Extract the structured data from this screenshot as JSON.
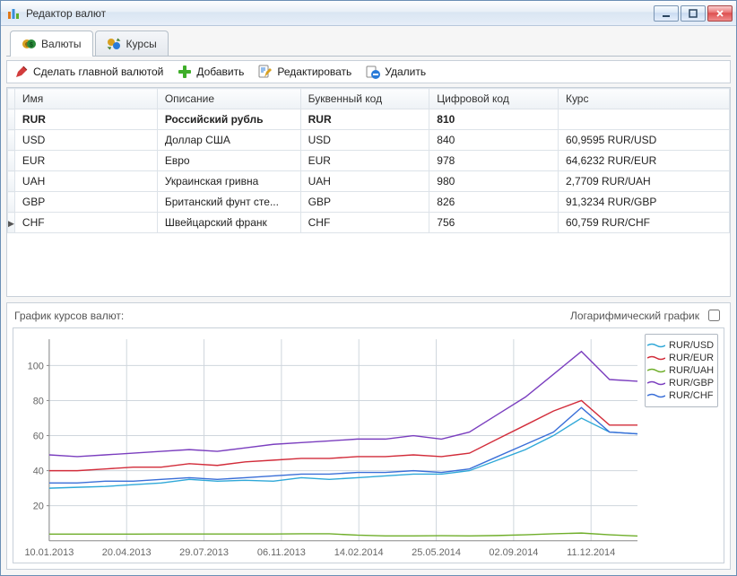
{
  "window": {
    "title": "Редактор валют"
  },
  "tabs": [
    {
      "label": "Валюты",
      "active": true
    },
    {
      "label": "Курсы",
      "active": false
    }
  ],
  "toolbar": {
    "make_main": "Сделать главной валютой",
    "add": "Добавить",
    "edit": "Редактировать",
    "delete": "Удалить"
  },
  "table": {
    "columns": [
      "Имя",
      "Описание",
      "Буквенный код",
      "Цифровой код",
      "Курс"
    ],
    "col_widths_pct": [
      20,
      20,
      18,
      18,
      24
    ],
    "rows": [
      {
        "name": "RUR",
        "desc": "Российский рубль",
        "alpha": "RUR",
        "num": "810",
        "rate": "",
        "bold": true,
        "current": false
      },
      {
        "name": "USD",
        "desc": "Доллар США",
        "alpha": "USD",
        "num": "840",
        "rate": "60,9595 RUR/USD",
        "bold": false,
        "current": false
      },
      {
        "name": "EUR",
        "desc": "Евро",
        "alpha": "EUR",
        "num": "978",
        "rate": "64,6232 RUR/EUR",
        "bold": false,
        "current": false
      },
      {
        "name": "UAH",
        "desc": "Украинская гривна",
        "alpha": "UAH",
        "num": "980",
        "rate": "2,7709 RUR/UAH",
        "bold": false,
        "current": false
      },
      {
        "name": "GBP",
        "desc": "Британский фунт сте...",
        "alpha": "GBP",
        "num": "826",
        "rate": "91,3234 RUR/GBP",
        "bold": false,
        "current": false
      },
      {
        "name": "CHF",
        "desc": "Швейцарский франк",
        "alpha": "CHF",
        "num": "756",
        "rate": "60,759 RUR/CHF",
        "bold": false,
        "current": true
      }
    ]
  },
  "chart": {
    "title": "График курсов валют:",
    "log_label": "Логарифмический график",
    "log_checked": false,
    "x_labels": [
      "10.01.2013",
      "20.04.2013",
      "29.07.2013",
      "06.11.2013",
      "14.02.2014",
      "25.05.2014",
      "02.09.2014",
      "11.12.2014"
    ],
    "y_ticks": [
      20,
      40,
      60,
      80,
      100
    ],
    "y_min": 0,
    "y_max": 115,
    "grid_color": "#cfd6dd",
    "axis_color": "#888",
    "bg": "#ffffff",
    "label_fontsize": 11,
    "series": [
      {
        "name": "RUR/USD",
        "color": "#2fa8d8",
        "values": [
          30,
          30.5,
          31,
          32,
          33,
          35,
          34,
          34.5,
          34,
          36,
          35,
          36,
          37,
          38,
          38,
          40,
          46,
          52,
          60,
          70,
          62,
          61
        ]
      },
      {
        "name": "RUR/EUR",
        "color": "#d22c3a",
        "values": [
          40,
          40,
          41,
          42,
          42,
          44,
          43,
          45,
          46,
          47,
          47,
          48,
          48,
          49,
          48,
          50,
          58,
          66,
          74,
          80,
          66,
          66
        ]
      },
      {
        "name": "RUR/UAH",
        "color": "#6fae2a",
        "values": [
          3.8,
          3.8,
          3.8,
          3.8,
          3.9,
          3.9,
          3.9,
          3.9,
          3.9,
          4,
          4,
          3.2,
          2.8,
          2.8,
          2.9,
          2.8,
          3.0,
          3.4,
          4.0,
          4.4,
          3.4,
          2.7
        ]
      },
      {
        "name": "RUR/GBP",
        "color": "#7b3fbf",
        "values": [
          49,
          48,
          49,
          50,
          51,
          52,
          51,
          53,
          55,
          56,
          57,
          58,
          58,
          60,
          58,
          62,
          72,
          82,
          95,
          108,
          92,
          91
        ]
      },
      {
        "name": "RUR/CHF",
        "color": "#3a6fd8",
        "values": [
          33,
          33,
          34,
          34,
          35,
          36,
          35,
          36,
          37,
          38,
          38,
          39,
          39,
          40,
          39,
          41,
          48,
          55,
          62,
          76,
          62,
          61
        ]
      }
    ]
  },
  "icons": {
    "app_bars": [
      "#e07818",
      "#3a8ed8",
      "#5fae2a"
    ],
    "pencil_red": "#d23c3c",
    "plus_green": "#3fae2a",
    "edit_blue": "#2a7bd8",
    "delete_blue": "#2a7bd8",
    "tab1_colors": [
      "#2a8a3a",
      "#d8a020"
    ],
    "tab2_colors": [
      "#2a7bd8",
      "#d8a020"
    ]
  }
}
